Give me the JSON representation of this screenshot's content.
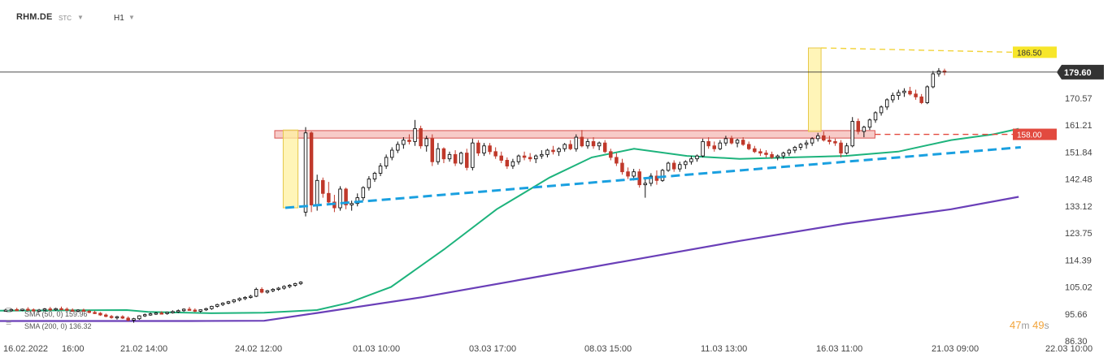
{
  "header": {
    "symbol": "RHM.DE",
    "symbol_type": "STC",
    "timeframe": "H1"
  },
  "legend": [
    {
      "label": "SMA (50, 0) 159.96",
      "color": "#1db37c"
    },
    {
      "label": "SMA (200, 0) 136.32",
      "color": "#6a3fb8"
    }
  ],
  "countdown": {
    "minutes": "47",
    "m_unit": "m",
    "seconds": "49",
    "s_unit": "s"
  },
  "colors": {
    "bull": "#111111",
    "bear": "#c0392b",
    "sma50": "#1db37c",
    "sma200": "#6a3fb8",
    "trendline": "#1aa0e0",
    "resistance_zone": "#f4b5b0",
    "highlight": "#fff2a0",
    "price_line": "#333333",
    "target_label": "#f7e62a",
    "level_label": "#e24a3f"
  },
  "chart_data": {
    "type": "candlestick",
    "symbol": "RHM.DE",
    "timeframe": "H1",
    "ylim": [
      86.3,
      199.0
    ],
    "x_ticks": [
      "16.02.2022",
      "16:00",
      "21.02 14:00",
      "24.02 12:00",
      "01.03 10:00",
      "03.03 17:00",
      "08.03 15:00",
      "11.03 13:00",
      "16.03 11:00",
      "21.03 09:00",
      "22.03 10:00"
    ],
    "y_ticks": [
      86.3,
      95.66,
      105.02,
      114.39,
      123.75,
      133.12,
      142.48,
      151.84,
      161.21,
      170.57
    ],
    "y_tick_labels": [
      "86.30",
      "95.66",
      "105.02",
      "114.39",
      "123.75",
      "133.12",
      "142.48",
      "151.84",
      "161.21",
      "170.57"
    ],
    "last_price": 179.6,
    "last_price_label": "179.60",
    "levels": [
      {
        "name": "target",
        "value": 186.5,
        "label": "186.50"
      },
      {
        "name": "resistance",
        "value": 158.0,
        "label": "158.00"
      }
    ],
    "sma50_end": 159.96,
    "sma200_end": 136.32,
    "bars": [
      [
        97,
        97.5,
        96.5,
        97
      ],
      [
        96.9,
        97.6,
        96.4,
        97.2
      ],
      [
        97.2,
        97.8,
        96.8,
        96.9
      ],
      [
        97,
        97.5,
        96.6,
        97.3
      ],
      [
        97.3,
        98.0,
        96.9,
        97.1
      ],
      [
        97.1,
        97.6,
        96.5,
        96.8
      ],
      [
        96.8,
        97.4,
        96.3,
        97.0
      ],
      [
        97.0,
        97.7,
        96.6,
        97.4
      ],
      [
        97.4,
        98.1,
        97.0,
        97.2
      ],
      [
        97.2,
        97.8,
        96.7,
        97.5
      ],
      [
        97.5,
        98.2,
        97.1,
        97.3
      ],
      [
        97.3,
        97.9,
        96.8,
        97.0
      ],
      [
        97.0,
        97.6,
        96.4,
        96.7
      ],
      [
        96.7,
        97.3,
        96.2,
        97.0
      ],
      [
        97.0,
        97.5,
        96.6,
        96.6
      ],
      [
        96.6,
        97.1,
        95.9,
        96.2
      ],
      [
        96.2,
        96.8,
        95.6,
        95.9
      ],
      [
        95.9,
        96.3,
        95.0,
        95.3
      ],
      [
        95.3,
        95.8,
        94.5,
        94.8
      ],
      [
        94.8,
        95.3,
        94.0,
        94.4
      ],
      [
        94.4,
        95.0,
        93.7,
        94.7
      ],
      [
        94.7,
        95.2,
        93.9,
        94.2
      ],
      [
        94.2,
        94.8,
        93.1,
        93.5
      ],
      [
        93.5,
        94.3,
        92.6,
        94.0
      ],
      [
        94.0,
        95.2,
        93.6,
        95.0
      ],
      [
        95.0,
        95.8,
        94.6,
        95.4
      ],
      [
        95.4,
        96.1,
        95.0,
        95.7
      ],
      [
        95.7,
        96.3,
        95.3,
        96.0
      ],
      [
        96.0,
        96.6,
        95.5,
        95.8
      ],
      [
        95.8,
        96.4,
        95.4,
        96.2
      ],
      [
        96.2,
        96.9,
        95.8,
        96.5
      ],
      [
        96.5,
        97.2,
        96.0,
        96.8
      ],
      [
        96.8,
        97.6,
        96.4,
        97.3
      ],
      [
        97.3,
        98.1,
        96.9,
        97.0
      ],
      [
        97.0,
        97.6,
        96.3,
        96.6
      ],
      [
        96.6,
        97.2,
        96.1,
        97.1
      ],
      [
        97.1,
        97.8,
        96.7,
        97.5
      ],
      [
        97.5,
        98.5,
        97.1,
        98.3
      ],
      [
        98.3,
        99.2,
        97.9,
        98.9
      ],
      [
        98.9,
        99.7,
        98.4,
        99.4
      ],
      [
        99.4,
        100.2,
        99.0,
        99.9
      ],
      [
        99.9,
        100.8,
        99.4,
        100.5
      ],
      [
        100.5,
        101.4,
        100.0,
        101.0
      ],
      [
        101.0,
        101.8,
        100.5,
        101.4
      ],
      [
        101.4,
        102.3,
        101.0,
        101.8
      ],
      [
        101.8,
        104.8,
        101.5,
        104.2
      ],
      [
        104.2,
        104.9,
        102.8,
        103.2
      ],
      [
        103.2,
        104.0,
        102.7,
        103.7
      ],
      [
        103.7,
        104.6,
        103.2,
        104.2
      ],
      [
        104.2,
        105.0,
        103.7,
        104.6
      ],
      [
        104.6,
        105.6,
        104.1,
        105.2
      ],
      [
        105.2,
        106.0,
        104.6,
        105.6
      ],
      [
        105.6,
        106.5,
        105.1,
        106.2
      ],
      [
        106.2,
        107.0,
        105.7,
        106.7
      ],
      [
        131.0,
        160.5,
        129.5,
        158.5
      ],
      [
        158.5,
        159.0,
        131.0,
        133.5
      ],
      [
        133.5,
        144.0,
        131.5,
        142.0
      ],
      [
        142.0,
        143.0,
        136.0,
        137.5
      ],
      [
        137.5,
        141.5,
        133.5,
        134.5
      ],
      [
        134.5,
        137.0,
        131.0,
        132.5
      ],
      [
        132.5,
        140.0,
        131.5,
        139.0
      ],
      [
        139.0,
        139.5,
        132.0,
        133.5
      ],
      [
        133.5,
        135.0,
        131.5,
        134.0
      ],
      [
        134.0,
        137.5,
        133.0,
        136.0
      ],
      [
        136.0,
        140.0,
        135.0,
        139.5
      ],
      [
        139.5,
        143.5,
        138.5,
        142.5
      ],
      [
        142.5,
        145.0,
        141.5,
        144.5
      ],
      [
        144.5,
        148.0,
        143.5,
        147.0
      ],
      [
        147.0,
        151.0,
        146.0,
        150.0
      ],
      [
        150.0,
        153.5,
        149.0,
        152.5
      ],
      [
        152.5,
        155.5,
        151.5,
        154.5
      ],
      [
        154.5,
        157.0,
        153.0,
        156.0
      ],
      [
        156.0,
        158.0,
        154.5,
        155.5
      ],
      [
        155.5,
        163.0,
        154.0,
        160.0
      ],
      [
        160.0,
        161.0,
        153.0,
        154.0
      ],
      [
        154.0,
        157.5,
        152.0,
        156.5
      ],
      [
        156.5,
        158.0,
        147.0,
        148.5
      ],
      [
        148.5,
        155.0,
        147.5,
        153.0
      ],
      [
        153.0,
        153.5,
        148.0,
        149.5
      ],
      [
        149.5,
        152.0,
        148.5,
        151.0
      ],
      [
        151.0,
        152.5,
        147.0,
        148.0
      ],
      [
        148.0,
        152.0,
        147.5,
        151.5
      ],
      [
        151.5,
        153.0,
        145.5,
        146.5
      ],
      [
        146.5,
        156.5,
        145.5,
        155.0
      ],
      [
        155.0,
        156.0,
        150.5,
        151.5
      ],
      [
        151.5,
        155.0,
        150.5,
        154.0
      ],
      [
        154.0,
        155.0,
        151.0,
        152.0
      ],
      [
        152.0,
        153.5,
        149.5,
        150.5
      ],
      [
        150.5,
        152.0,
        148.0,
        149.0
      ],
      [
        149.0,
        150.0,
        146.0,
        147.0
      ],
      [
        147.0,
        149.5,
        146.0,
        148.5
      ],
      [
        148.5,
        151.0,
        147.5,
        150.5
      ],
      [
        150.5,
        152.0,
        149.0,
        150.0
      ],
      [
        150.0,
        151.5,
        148.5,
        149.5
      ],
      [
        149.5,
        151.0,
        148.0,
        150.5
      ],
      [
        150.5,
        152.5,
        149.5,
        151.0
      ],
      [
        151.0,
        153.0,
        150.0,
        152.5
      ],
      [
        152.5,
        154.0,
        151.0,
        152.0
      ],
      [
        152.0,
        153.5,
        150.5,
        153.0
      ],
      [
        153.0,
        155.0,
        152.0,
        154.5
      ],
      [
        154.5,
        156.0,
        152.5,
        153.0
      ],
      [
        153.0,
        158.0,
        152.0,
        157.0
      ],
      [
        157.0,
        159.5,
        153.5,
        154.0
      ],
      [
        154.0,
        156.5,
        153.0,
        155.5
      ],
      [
        155.5,
        157.0,
        153.0,
        154.0
      ],
      [
        154.0,
        155.5,
        152.5,
        155.0
      ],
      [
        155.0,
        156.0,
        151.5,
        152.0
      ],
      [
        152.0,
        153.0,
        149.0,
        150.0
      ],
      [
        150.0,
        151.5,
        147.0,
        148.0
      ],
      [
        148.0,
        149.5,
        144.0,
        145.0
      ],
      [
        145.0,
        146.5,
        142.5,
        143.5
      ],
      [
        143.5,
        146.0,
        142.0,
        145.0
      ],
      [
        145.0,
        146.0,
        139.5,
        140.5
      ],
      [
        140.5,
        143.0,
        136.0,
        141.0
      ],
      [
        141.0,
        144.5,
        140.0,
        143.5
      ],
      [
        143.5,
        145.5,
        140.5,
        142.0
      ],
      [
        142.0,
        146.0,
        141.5,
        145.5
      ],
      [
        145.5,
        148.5,
        145.0,
        148.0
      ],
      [
        148.0,
        149.0,
        145.0,
        146.0
      ],
      [
        146.0,
        148.5,
        145.0,
        147.5
      ],
      [
        147.5,
        149.0,
        146.0,
        148.5
      ],
      [
        148.5,
        150.5,
        147.5,
        149.5
      ],
      [
        149.5,
        151.0,
        148.5,
        150.5
      ],
      [
        150.5,
        156.5,
        150.0,
        155.5
      ],
      [
        155.5,
        157.0,
        153.0,
        154.0
      ],
      [
        154.0,
        155.5,
        152.0,
        153.0
      ],
      [
        153.0,
        156.0,
        152.5,
        155.0
      ],
      [
        155.0,
        157.5,
        154.0,
        156.5
      ],
      [
        156.5,
        157.5,
        154.5,
        155.0
      ],
      [
        155.0,
        156.5,
        153.5,
        156.0
      ],
      [
        156.0,
        157.0,
        154.0,
        154.5
      ],
      [
        154.5,
        155.5,
        152.5,
        153.0
      ],
      [
        153.0,
        154.0,
        151.5,
        152.0
      ],
      [
        152.0,
        153.0,
        150.5,
        151.5
      ],
      [
        151.5,
        152.5,
        150.0,
        151.0
      ],
      [
        151.0,
        152.0,
        149.5,
        150.0
      ],
      [
        150.0,
        151.0,
        149.0,
        150.5
      ],
      [
        150.5,
        152.0,
        149.5,
        151.5
      ],
      [
        151.5,
        153.0,
        150.5,
        152.5
      ],
      [
        152.5,
        154.0,
        151.5,
        153.5
      ],
      [
        153.5,
        155.0,
        152.5,
        154.5
      ],
      [
        154.5,
        156.0,
        153.0,
        155.0
      ],
      [
        155.0,
        157.0,
        154.0,
        156.5
      ],
      [
        156.5,
        158.5,
        155.5,
        157.5
      ],
      [
        157.5,
        159.0,
        155.5,
        156.0
      ],
      [
        156.0,
        157.5,
        154.5,
        155.5
      ],
      [
        155.5,
        156.5,
        154.0,
        155.0
      ],
      [
        155.0,
        156.0,
        150.0,
        151.5
      ],
      [
        151.5,
        155.0,
        151.0,
        154.0
      ],
      [
        154.0,
        164.0,
        153.5,
        162.5
      ],
      [
        162.5,
        163.5,
        158.0,
        159.0
      ],
      [
        159.0,
        161.0,
        157.0,
        160.5
      ],
      [
        160.5,
        163.5,
        159.5,
        163.0
      ],
      [
        163.0,
        166.0,
        162.0,
        165.5
      ],
      [
        165.5,
        168.0,
        164.5,
        167.5
      ],
      [
        167.5,
        170.5,
        166.5,
        170.0
      ],
      [
        170.0,
        172.5,
        169.0,
        171.5
      ],
      [
        171.5,
        173.5,
        170.0,
        172.5
      ],
      [
        172.5,
        174.0,
        171.0,
        173.0
      ],
      [
        173.0,
        174.5,
        171.5,
        172.0
      ],
      [
        172.0,
        173.5,
        170.0,
        171.0
      ],
      [
        171.0,
        172.0,
        168.5,
        169.0
      ],
      [
        169.0,
        175.0,
        168.5,
        174.5
      ],
      [
        174.5,
        180.0,
        174.0,
        179.0
      ],
      [
        179.0,
        181.0,
        178.0,
        180.0
      ],
      [
        180.0,
        180.8,
        178.5,
        179.6
      ]
    ],
    "sma50": [
      [
        0,
        96.8
      ],
      [
        0.12,
        97.0
      ],
      [
        0.14,
        96.4
      ],
      [
        0.2,
        95.9
      ],
      [
        0.25,
        96.1
      ],
      [
        0.3,
        97.0
      ],
      [
        0.33,
        99.5
      ],
      [
        0.37,
        105.0
      ],
      [
        0.42,
        118.0
      ],
      [
        0.47,
        132.0
      ],
      [
        0.52,
        143.0
      ],
      [
        0.56,
        150.0
      ],
      [
        0.6,
        153.0
      ],
      [
        0.65,
        150.5
      ],
      [
        0.7,
        149.5
      ],
      [
        0.75,
        150.0
      ],
      [
        0.8,
        150.5
      ],
      [
        0.85,
        152.0
      ],
      [
        0.9,
        156.0
      ],
      [
        0.94,
        158.0
      ],
      [
        0.964,
        159.96
      ]
    ],
    "sma200": [
      [
        0,
        93.2
      ],
      [
        0.12,
        93.2
      ],
      [
        0.18,
        93.2
      ],
      [
        0.25,
        93.3
      ],
      [
        0.3,
        96.0
      ],
      [
        0.4,
        101.5
      ],
      [
        0.5,
        108.0
      ],
      [
        0.6,
        114.5
      ],
      [
        0.7,
        121.0
      ],
      [
        0.8,
        127.0
      ],
      [
        0.9,
        132.0
      ],
      [
        0.964,
        136.32
      ]
    ],
    "trendline": {
      "from": [
        0.27,
        132.5
      ],
      "to": [
        0.966,
        153.5
      ]
    },
    "annotations": {
      "resistance_zone": {
        "x": [
          0.26,
          0.828
        ],
        "y": [
          156.7,
          159.3
        ]
      },
      "highlight_low": {
        "x": [
          0.268,
          0.282
        ],
        "y": [
          132.5,
          159.5
        ]
      },
      "highlight_high": {
        "x": [
          0.765,
          0.777
        ],
        "y": [
          159.0,
          188.0
        ]
      }
    }
  }
}
